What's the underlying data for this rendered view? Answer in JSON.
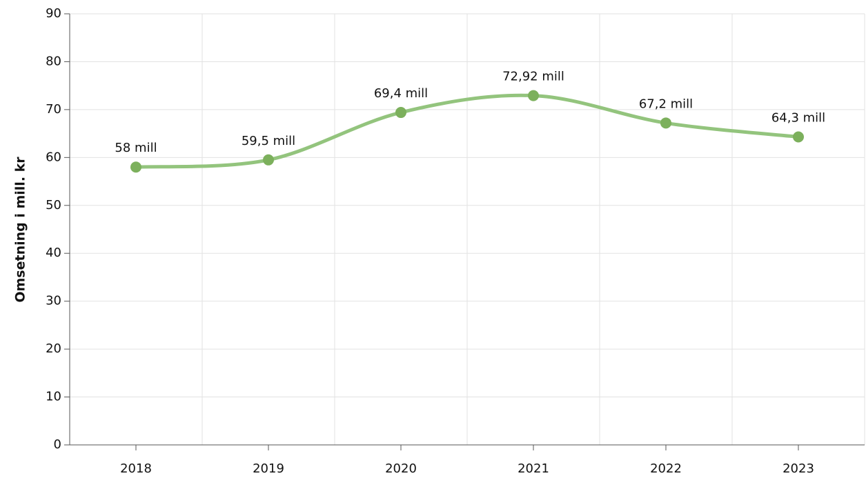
{
  "chart_data": {
    "type": "line",
    "y_axis_label": "Omsetning i mill. kr",
    "categories": [
      "2018",
      "2019",
      "2020",
      "2021",
      "2022",
      "2023"
    ],
    "values": [
      58,
      59.5,
      69.4,
      72.92,
      67.2,
      64.3
    ],
    "value_labels": [
      "58 mill",
      "59,5 mill",
      "69,4 mill",
      "72,92 mill",
      "67,2 mill",
      "64,3 mill"
    ],
    "color": "#93c47d",
    "marker_color": "#7cb05c",
    "ylim": [
      0,
      90
    ],
    "yticks": [
      0,
      10,
      20,
      30,
      40,
      50,
      60,
      70,
      80,
      90
    ],
    "grid": true,
    "smooth": true
  }
}
